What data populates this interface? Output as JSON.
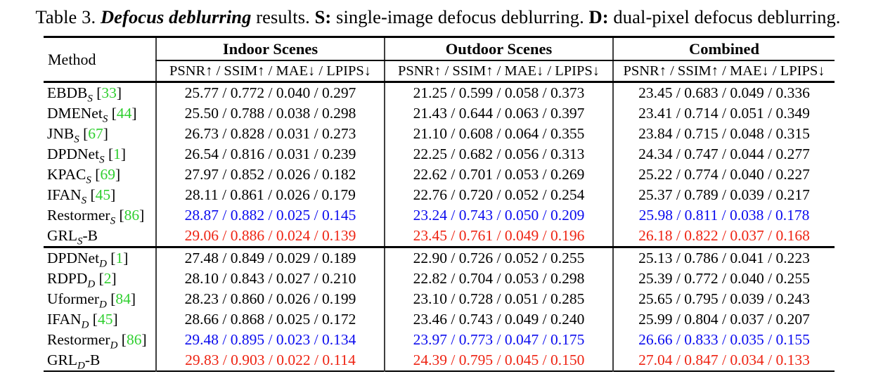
{
  "caption": {
    "parts": [
      {
        "text": "Table 3. ",
        "style": "normal"
      },
      {
        "text": "Defocus deblurring",
        "style": "bold-italic"
      },
      {
        "text": " results. ",
        "style": "normal"
      },
      {
        "text": "S:",
        "style": "bold"
      },
      {
        "text": " single-image defocus deblurring. ",
        "style": "normal"
      },
      {
        "text": "D:",
        "style": "bold"
      },
      {
        "text": " dual-pixel defocus deblurring.",
        "style": "normal"
      }
    ]
  },
  "table": {
    "method_header": "Method",
    "groups": [
      {
        "label": "Indoor Scenes",
        "sub": "PSNR↑ / SSIM↑ / MAE↓ / LPIPS↓"
      },
      {
        "label": "Outdoor Scenes",
        "sub": "PSNR↑ / SSIM↑ / MAE↓ / LPIPS↓"
      },
      {
        "label": "Combined",
        "sub": "PSNR↑ / SSIM↑ / MAE↓ / LPIPS↓"
      }
    ],
    "colors": {
      "citation": "#2fcf2f",
      "highlight_blue": "#0b0bee",
      "highlight_red": "#ee2413"
    },
    "sections": [
      {
        "name": "single-image",
        "rows": [
          {
            "method": "EBDB",
            "subscript": "S",
            "suffix": "",
            "citation": "33",
            "values_color": "black",
            "indoor": "25.77 / 0.772 / 0.040 / 0.297",
            "outdoor": "21.25 / 0.599 / 0.058 / 0.373",
            "combined": "23.45 / 0.683 / 0.049 / 0.336"
          },
          {
            "method": "DMENet",
            "subscript": "S",
            "suffix": "",
            "citation": "44",
            "values_color": "black",
            "indoor": "25.50 / 0.788 / 0.038 / 0.298",
            "outdoor": "21.43 / 0.644 / 0.063 / 0.397",
            "combined": "23.41 / 0.714 / 0.051 / 0.349"
          },
          {
            "method": "JNB",
            "subscript": "S",
            "suffix": "",
            "citation": "67",
            "values_color": "black",
            "indoor": "26.73 / 0.828 / 0.031 / 0.273",
            "outdoor": "21.10 / 0.608 / 0.064 / 0.355",
            "combined": "23.84 / 0.715 / 0.048 / 0.315"
          },
          {
            "method": "DPDNet",
            "subscript": "S",
            "suffix": "",
            "citation": "1",
            "values_color": "black",
            "indoor": "26.54 / 0.816 / 0.031 / 0.239",
            "outdoor": "22.25 / 0.682 / 0.056 / 0.313",
            "combined": "24.34 / 0.747 / 0.044 / 0.277"
          },
          {
            "method": "KPAC",
            "subscript": "S",
            "suffix": "",
            "citation": "69",
            "values_color": "black",
            "indoor": "27.97 / 0.852 / 0.026 / 0.182",
            "outdoor": "22.62 / 0.701 / 0.053 / 0.269",
            "combined": "25.22 / 0.774 / 0.040 / 0.227"
          },
          {
            "method": "IFAN",
            "subscript": "S",
            "suffix": "",
            "citation": "45",
            "values_color": "black",
            "indoor": "28.11 / 0.861 / 0.026 / 0.179",
            "outdoor": "22.76 / 0.720 / 0.052 / 0.254",
            "combined": "25.37 / 0.789 / 0.039 / 0.217"
          },
          {
            "method": "Restormer",
            "subscript": "S",
            "suffix": "",
            "citation": "86",
            "values_color": "blue",
            "indoor": "28.87 / 0.882 / 0.025 / 0.145",
            "outdoor": "23.24 / 0.743 / 0.050 / 0.209",
            "combined": "25.98 / 0.811 / 0.038 / 0.178"
          },
          {
            "method": "GRL",
            "subscript": "S",
            "suffix": "-B",
            "citation": null,
            "values_color": "red",
            "indoor": "29.06 / 0.886 / 0.024 / 0.139",
            "outdoor": "23.45 / 0.761 / 0.049 / 0.196",
            "combined": "26.18 / 0.822 / 0.037 / 0.168"
          }
        ]
      },
      {
        "name": "dual-pixel",
        "rows": [
          {
            "method": "DPDNet",
            "subscript": "D",
            "suffix": "",
            "citation": "1",
            "values_color": "black",
            "indoor": "27.48 / 0.849 / 0.029 / 0.189",
            "outdoor": "22.90 / 0.726 / 0.052 / 0.255",
            "combined": "25.13 / 0.786 / 0.041 / 0.223"
          },
          {
            "method": "RDPD",
            "subscript": "D",
            "suffix": "",
            "citation": "2",
            "values_color": "black",
            "indoor": "28.10 / 0.843 / 0.027 / 0.210",
            "outdoor": "22.82 / 0.704 / 0.053 / 0.298",
            "combined": "25.39 / 0.772 / 0.040 / 0.255"
          },
          {
            "method": "Uformer",
            "subscript": "D",
            "suffix": "",
            "citation": "84",
            "values_color": "black",
            "indoor": "28.23 / 0.860 / 0.026 / 0.199",
            "outdoor": "23.10 / 0.728 / 0.051 / 0.285",
            "combined": "25.65 / 0.795 / 0.039 / 0.243"
          },
          {
            "method": "IFAN",
            "subscript": "D",
            "suffix": "",
            "citation": "45",
            "values_color": "black",
            "indoor": "28.66 / 0.868 / 0.025 / 0.172",
            "outdoor": "23.46 / 0.743 / 0.049 / 0.240",
            "combined": "25.99 / 0.804 / 0.037 / 0.207"
          },
          {
            "method": "Restormer",
            "subscript": "D",
            "suffix": "",
            "citation": "86",
            "values_color": "blue",
            "indoor": "29.48 / 0.895 / 0.023 / 0.134",
            "outdoor": "23.97 / 0.773 / 0.047 / 0.175",
            "combined": "26.66 / 0.833 / 0.035 / 0.155"
          },
          {
            "method": "GRL",
            "subscript": "D",
            "suffix": "-B",
            "citation": null,
            "values_color": "red",
            "indoor": "29.83 / 0.903 / 0.022 / 0.114",
            "outdoor": "24.39 / 0.795 / 0.045 / 0.150",
            "combined": "27.04 / 0.847 / 0.034 / 0.133"
          }
        ]
      }
    ]
  }
}
